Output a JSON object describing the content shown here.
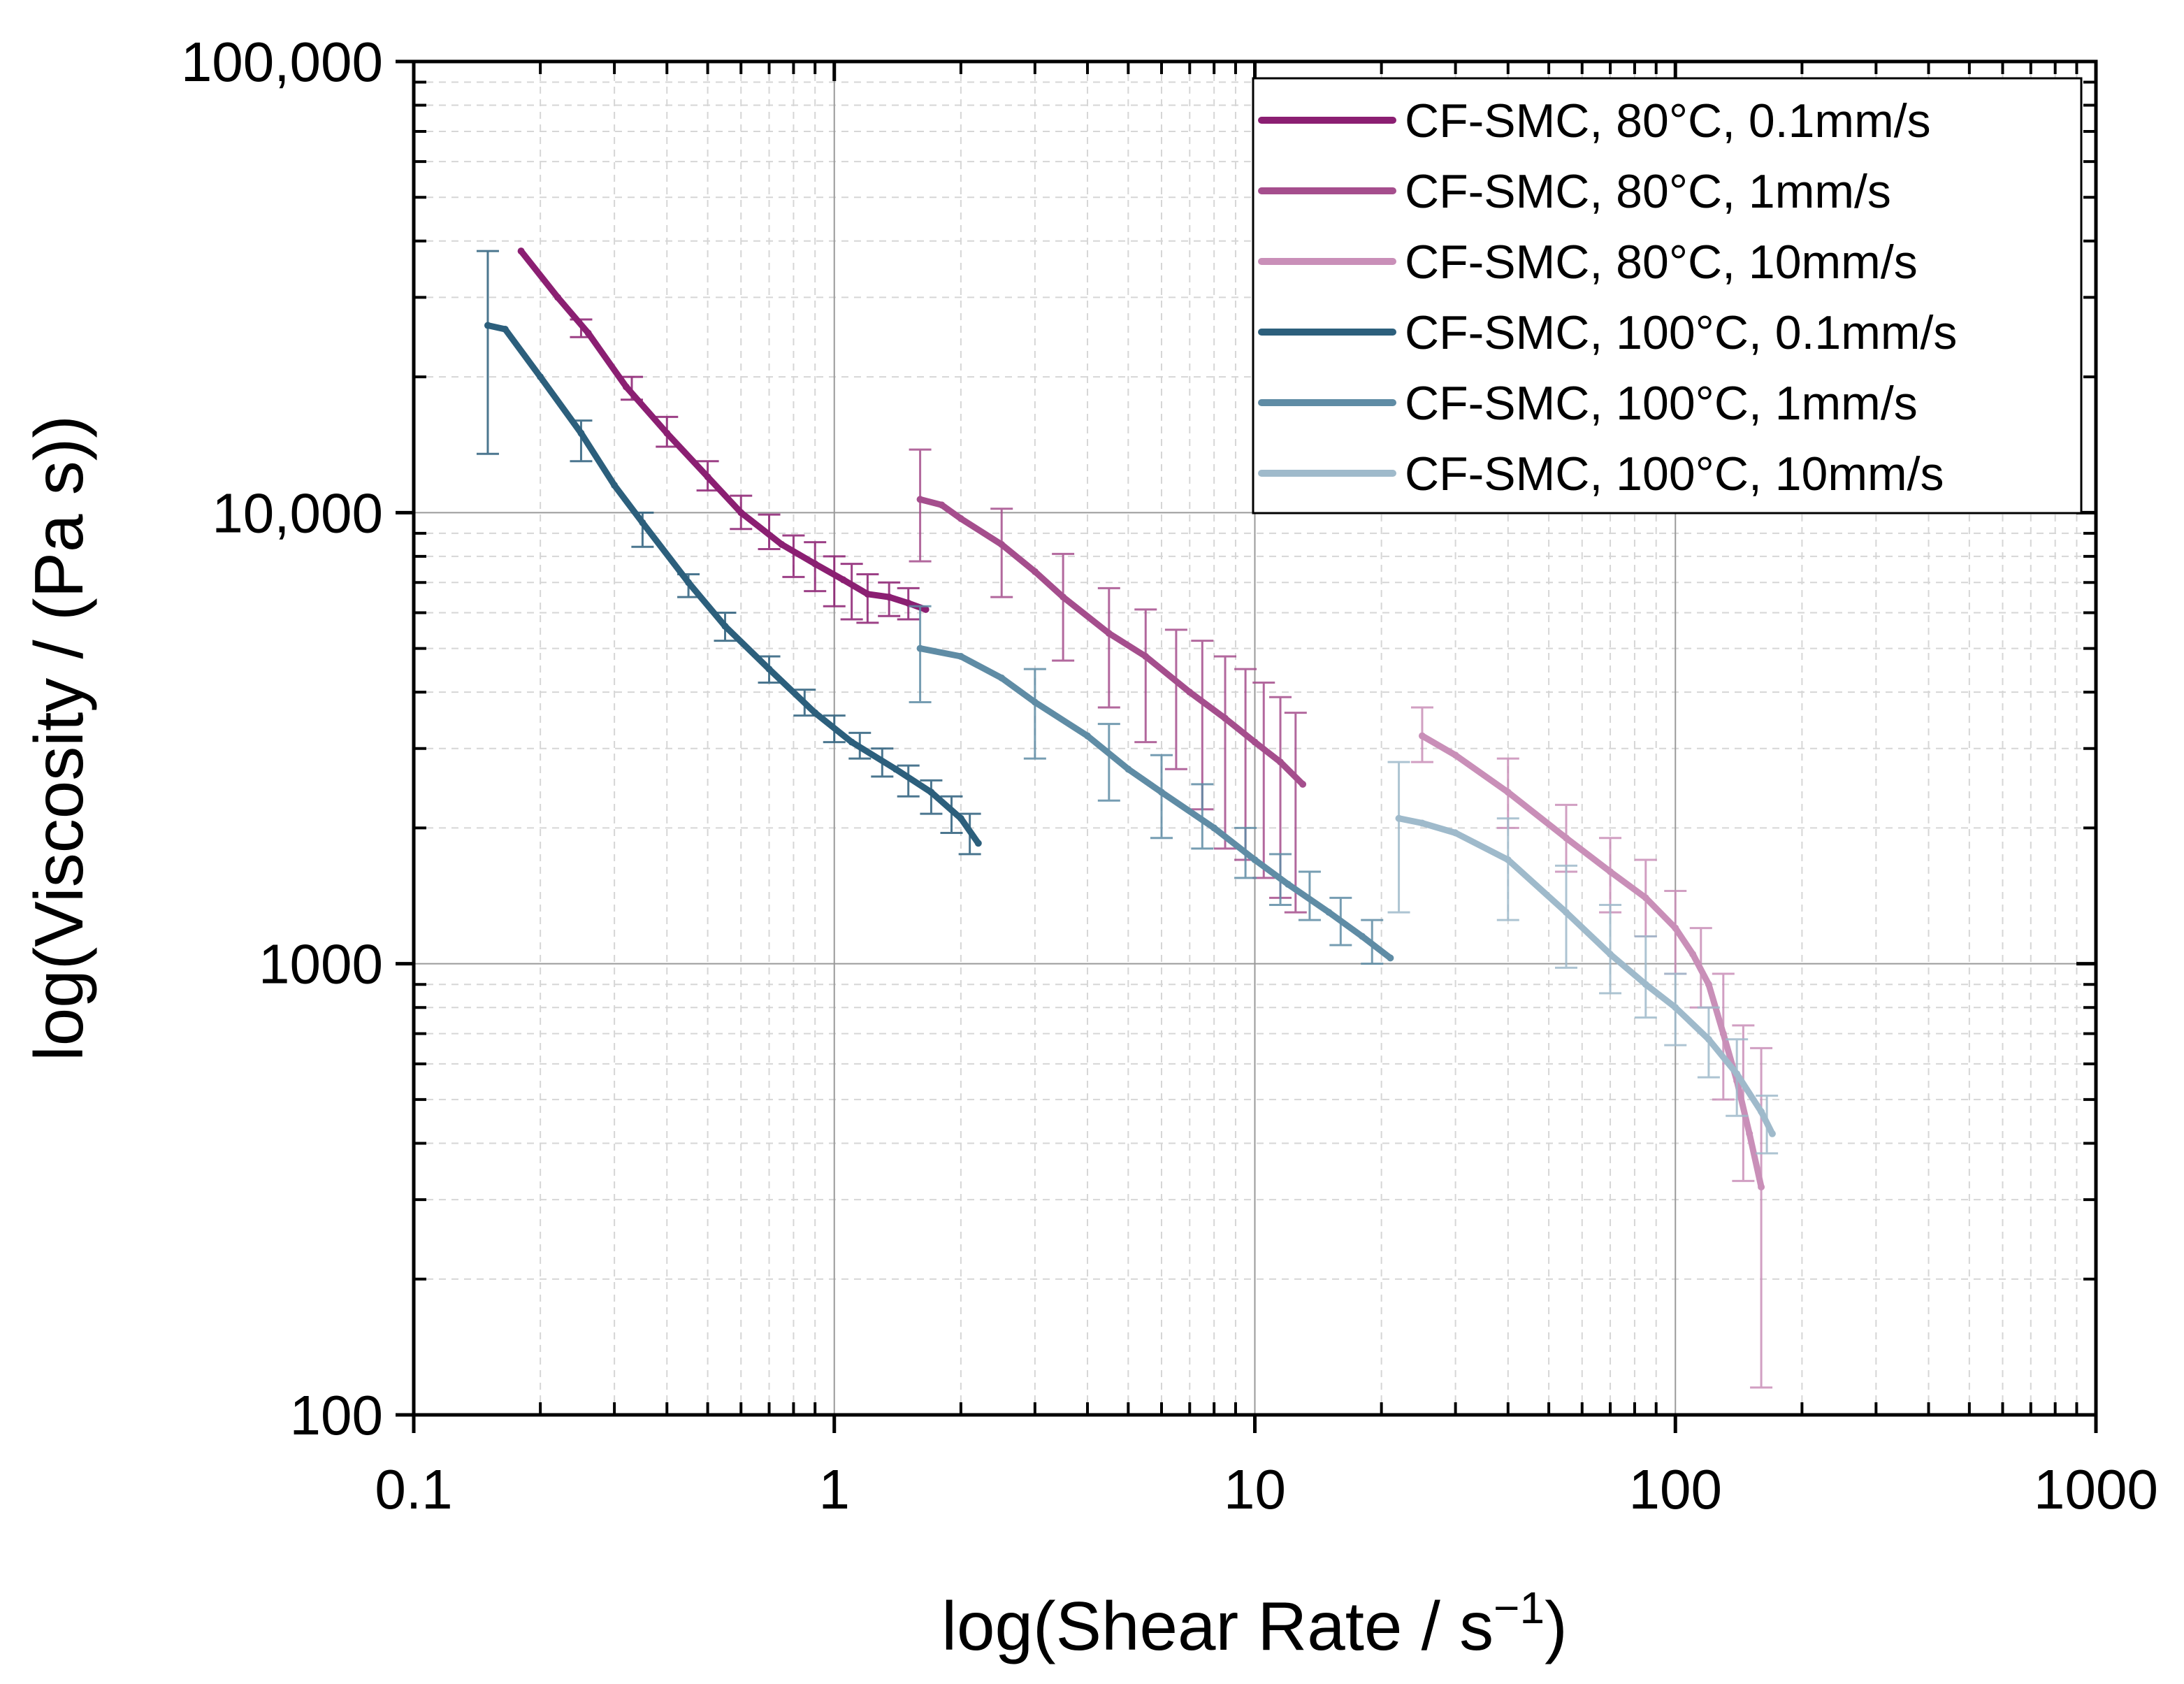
{
  "chart_data": {
    "type": "line",
    "xscale": "log",
    "yscale": "log",
    "xlabel_main": "log(Shear Rate / s",
    "xlabel_sup": "−1",
    "xlabel_close": ")",
    "ylabel": "log(Viscosity / (Pa s))",
    "xlim": [
      0.1,
      1000
    ],
    "ylim": [
      100,
      100000
    ],
    "x_ticks": [
      {
        "value": 0.1,
        "label": "0.1"
      },
      {
        "value": 1,
        "label": "1"
      },
      {
        "value": 10,
        "label": "10"
      },
      {
        "value": 100,
        "label": "100"
      },
      {
        "value": 1000,
        "label": "1000"
      }
    ],
    "y_ticks": [
      {
        "value": 100,
        "label": "100"
      },
      {
        "value": 1000,
        "label": "1000"
      },
      {
        "value": 10000,
        "label": "10,000"
      },
      {
        "value": 100000,
        "label": "100,000"
      }
    ],
    "grid": true,
    "legend_position": "top-right",
    "series": [
      {
        "name": "CF-SMC, 80°C, 0.1mm/s",
        "color": "#8b1f72",
        "x": [
          0.18,
          0.22,
          0.26,
          0.32,
          0.4,
          0.5,
          0.6,
          0.75,
          0.9,
          1.05,
          1.2,
          1.35,
          1.5,
          1.65
        ],
        "y": [
          38000,
          30000,
          25000,
          19000,
          15000,
          12000,
          10000,
          8500,
          7700,
          7100,
          6600,
          6500,
          6300,
          6100
        ],
        "errors": [
          {
            "x": 0.25,
            "y": 25500,
            "lo": 24500,
            "hi": 26800
          },
          {
            "x": 0.33,
            "y": 19000,
            "lo": 17800,
            "hi": 20000
          },
          {
            "x": 0.4,
            "y": 15000,
            "lo": 14000,
            "hi": 16300
          },
          {
            "x": 0.5,
            "y": 12000,
            "lo": 11200,
            "hi": 13000
          },
          {
            "x": 0.6,
            "y": 10000,
            "lo": 9200,
            "hi": 10900
          },
          {
            "x": 0.7,
            "y": 9000,
            "lo": 8300,
            "hi": 9900
          },
          {
            "x": 0.8,
            "y": 8000,
            "lo": 7200,
            "hi": 8900
          },
          {
            "x": 0.9,
            "y": 7600,
            "lo": 6700,
            "hi": 8600
          },
          {
            "x": 1.0,
            "y": 7100,
            "lo": 6200,
            "hi": 8000
          },
          {
            "x": 1.1,
            "y": 6800,
            "lo": 5800,
            "hi": 7700
          },
          {
            "x": 1.2,
            "y": 6500,
            "lo": 5700,
            "hi": 7300
          },
          {
            "x": 1.35,
            "y": 6400,
            "lo": 5900,
            "hi": 7000
          },
          {
            "x": 1.5,
            "y": 6300,
            "lo": 5800,
            "hi": 6800
          }
        ]
      },
      {
        "name": "CF-SMC, 80°C, 1mm/s",
        "color": "#a54e8d",
        "x": [
          1.6,
          1.8,
          2.0,
          2.5,
          3.0,
          3.5,
          4.5,
          5.5,
          7.0,
          8.5,
          10.0,
          11.5,
          13.0
        ],
        "y": [
          10700,
          10400,
          9700,
          8500,
          7400,
          6500,
          5400,
          4800,
          4000,
          3500,
          3100,
          2800,
          2500
        ],
        "errors": [
          {
            "x": 1.6,
            "y": 10500,
            "lo": 7800,
            "hi": 13800
          },
          {
            "x": 2.5,
            "y": 8300,
            "lo": 6500,
            "hi": 10200
          },
          {
            "x": 3.5,
            "y": 6400,
            "lo": 4700,
            "hi": 8100
          },
          {
            "x": 4.5,
            "y": 5300,
            "lo": 3700,
            "hi": 6800
          },
          {
            "x": 5.5,
            "y": 4800,
            "lo": 3100,
            "hi": 6100
          },
          {
            "x": 6.5,
            "y": 4300,
            "lo": 2700,
            "hi": 5500
          },
          {
            "x": 7.5,
            "y": 4000,
            "lo": 2200,
            "hi": 5200
          },
          {
            "x": 8.5,
            "y": 3600,
            "lo": 1800,
            "hi": 4800
          },
          {
            "x": 9.5,
            "y": 3300,
            "lo": 1700,
            "hi": 4500
          },
          {
            "x": 10.5,
            "y": 3100,
            "lo": 1550,
            "hi": 4200
          },
          {
            "x": 11.5,
            "y": 2900,
            "lo": 1400,
            "hi": 3900
          },
          {
            "x": 12.5,
            "y": 2700,
            "lo": 1300,
            "hi": 3600
          }
        ]
      },
      {
        "name": "CF-SMC, 80°C, 10mm/s",
        "color": "#c98fb8",
        "x": [
          25,
          30,
          40,
          55,
          70,
          85,
          100,
          110,
          120,
          130,
          140,
          150,
          160
        ],
        "y": [
          3200,
          2900,
          2400,
          1900,
          1600,
          1400,
          1200,
          1050,
          900,
          700,
          550,
          420,
          320
        ],
        "errors": [
          {
            "x": 25,
            "y": 3200,
            "lo": 2800,
            "hi": 3700
          },
          {
            "x": 40,
            "y": 2400,
            "lo": 2000,
            "hi": 2850
          },
          {
            "x": 55,
            "y": 1900,
            "lo": 1600,
            "hi": 2250
          },
          {
            "x": 70,
            "y": 1600,
            "lo": 1300,
            "hi": 1900
          },
          {
            "x": 85,
            "y": 1400,
            "lo": 1150,
            "hi": 1700
          },
          {
            "x": 100,
            "y": 1200,
            "lo": 950,
            "hi": 1450
          },
          {
            "x": 115,
            "y": 1000,
            "lo": 800,
            "hi": 1200
          },
          {
            "x": 130,
            "y": 720,
            "lo": 500,
            "hi": 950
          },
          {
            "x": 145,
            "y": 520,
            "lo": 330,
            "hi": 730
          },
          {
            "x": 160,
            "y": 380,
            "lo": 115,
            "hi": 650
          }
        ]
      },
      {
        "name": "CF-SMC, 100°C, 0.1mm/s",
        "color": "#2c5f7c",
        "x": [
          0.15,
          0.165,
          0.2,
          0.25,
          0.3,
          0.35,
          0.45,
          0.55,
          0.7,
          0.9,
          1.1,
          1.4,
          1.7,
          2.0,
          2.2
        ],
        "y": [
          26000,
          25500,
          20000,
          15000,
          11500,
          9500,
          7000,
          5600,
          4500,
          3600,
          3100,
          2700,
          2400,
          2100,
          1850
        ],
        "errors": [
          {
            "x": 0.15,
            "y": 26000,
            "lo": 13500,
            "hi": 38000
          },
          {
            "x": 0.25,
            "y": 14500,
            "lo": 13000,
            "hi": 16000
          },
          {
            "x": 0.35,
            "y": 9300,
            "lo": 8400,
            "hi": 10000
          },
          {
            "x": 0.45,
            "y": 7000,
            "lo": 6500,
            "hi": 7300
          },
          {
            "x": 0.55,
            "y": 5600,
            "lo": 5200,
            "hi": 6000
          },
          {
            "x": 0.7,
            "y": 4500,
            "lo": 4200,
            "hi": 4800
          },
          {
            "x": 0.85,
            "y": 3800,
            "lo": 3550,
            "hi": 4050
          },
          {
            "x": 1.0,
            "y": 3300,
            "lo": 3100,
            "hi": 3550
          },
          {
            "x": 1.15,
            "y": 3050,
            "lo": 2850,
            "hi": 3250
          },
          {
            "x": 1.3,
            "y": 2800,
            "lo": 2600,
            "hi": 3000
          },
          {
            "x": 1.5,
            "y": 2550,
            "lo": 2350,
            "hi": 2750
          },
          {
            "x": 1.7,
            "y": 2350,
            "lo": 2150,
            "hi": 2550
          },
          {
            "x": 1.9,
            "y": 2150,
            "lo": 1950,
            "hi": 2350
          },
          {
            "x": 2.1,
            "y": 1950,
            "lo": 1750,
            "hi": 2150
          }
        ]
      },
      {
        "name": "CF-SMC, 100°C, 1mm/s",
        "color": "#5f8ca5",
        "x": [
          1.6,
          2.0,
          2.5,
          3.0,
          4.0,
          5.0,
          6.0,
          8.0,
          10.0,
          12.0,
          15.0,
          18.0,
          21.0
        ],
        "y": [
          5000,
          4800,
          4300,
          3800,
          3200,
          2700,
          2400,
          2000,
          1700,
          1500,
          1300,
          1150,
          1030
        ],
        "errors": [
          {
            "x": 1.6,
            "y": 5000,
            "lo": 3800,
            "hi": 6200
          },
          {
            "x": 3.0,
            "y": 3700,
            "lo": 2850,
            "hi": 4500
          },
          {
            "x": 4.5,
            "y": 2900,
            "lo": 2300,
            "hi": 3400
          },
          {
            "x": 6.0,
            "y": 2400,
            "lo": 1900,
            "hi": 2900
          },
          {
            "x": 7.5,
            "y": 2100,
            "lo": 1800,
            "hi": 2500
          },
          {
            "x": 9.5,
            "y": 1750,
            "lo": 1550,
            "hi": 2000
          },
          {
            "x": 11.5,
            "y": 1550,
            "lo": 1350,
            "hi": 1750
          },
          {
            "x": 13.5,
            "y": 1400,
            "lo": 1250,
            "hi": 1600
          },
          {
            "x": 16.0,
            "y": 1250,
            "lo": 1100,
            "hi": 1400
          },
          {
            "x": 19.0,
            "y": 1100,
            "lo": 1000,
            "hi": 1250
          }
        ]
      },
      {
        "name": "CF-SMC, 100°C, 10mm/s",
        "color": "#9fbacb",
        "x": [
          22,
          25,
          30,
          40,
          55,
          70,
          85,
          100,
          120,
          140,
          160,
          170
        ],
        "y": [
          2100,
          2050,
          1950,
          1700,
          1300,
          1050,
          900,
          800,
          680,
          570,
          470,
          420
        ],
        "errors": [
          {
            "x": 22,
            "y": 2100,
            "lo": 1300,
            "hi": 2800
          },
          {
            "x": 40,
            "y": 1700,
            "lo": 1250,
            "hi": 2100
          },
          {
            "x": 55,
            "y": 1300,
            "lo": 980,
            "hi": 1650
          },
          {
            "x": 70,
            "y": 1050,
            "lo": 860,
            "hi": 1350
          },
          {
            "x": 85,
            "y": 900,
            "lo": 760,
            "hi": 1150
          },
          {
            "x": 100,
            "y": 800,
            "lo": 660,
            "hi": 950
          },
          {
            "x": 120,
            "y": 680,
            "lo": 560,
            "hi": 800
          },
          {
            "x": 140,
            "y": 570,
            "lo": 460,
            "hi": 680
          },
          {
            "x": 165,
            "y": 440,
            "lo": 380,
            "hi": 510
          }
        ]
      }
    ]
  }
}
